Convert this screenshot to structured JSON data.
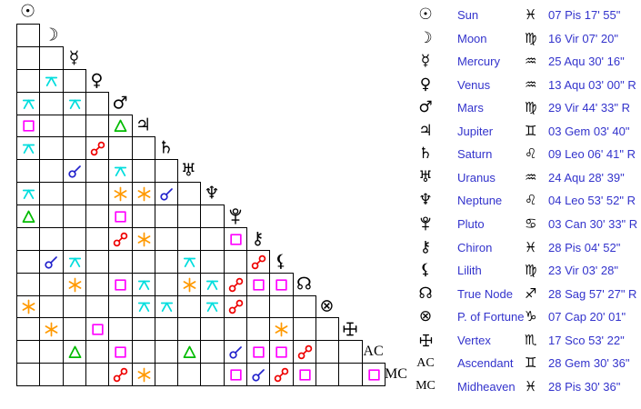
{
  "colors": {
    "background": "#ffffff",
    "grid_line": "#000000",
    "glyph": "#000000",
    "legend_text": "#3333cc"
  },
  "aspect_symbols": {
    "conjunction": {
      "label": "conjunction",
      "color": "#2222cc"
    },
    "opposition": {
      "label": "opposition",
      "color": "#ee0000"
    },
    "square": {
      "label": "square",
      "color": "#ff00ff"
    },
    "trine": {
      "label": "trine",
      "color": "#00bb00"
    },
    "sextile": {
      "label": "sextile",
      "color": "#ff9900"
    },
    "quincunx": {
      "label": "quincunx",
      "color": "#00dddd"
    }
  },
  "planets": [
    {
      "name": "Sun",
      "glyph": "☉",
      "glyph_type": "symbol",
      "sign": "♓",
      "position": "07 Pis 17' 55\""
    },
    {
      "name": "Moon",
      "glyph": "☽",
      "glyph_type": "symbol",
      "sign": "♍",
      "position": "16 Vir 07' 20\""
    },
    {
      "name": "Mercury",
      "glyph": "☿",
      "glyph_type": "symbol",
      "sign": "♒",
      "position": "25 Aqu 30' 16\""
    },
    {
      "name": "Venus",
      "glyph": "♀",
      "glyph_type": "symbol",
      "sign": "♒",
      "position": "13 Aqu 03' 00\" R"
    },
    {
      "name": "Mars",
      "glyph": "♂",
      "glyph_type": "symbol",
      "sign": "♍",
      "position": "29 Vir 44' 33\" R"
    },
    {
      "name": "Jupiter",
      "glyph": "♃",
      "glyph_type": "symbol",
      "sign": "♊",
      "position": "03 Gem 03' 40\""
    },
    {
      "name": "Saturn",
      "glyph": "♄",
      "glyph_type": "symbol",
      "sign": "♌",
      "position": "09 Leo 06' 41\" R"
    },
    {
      "name": "Uranus",
      "glyph": "♅",
      "glyph_type": "symbol",
      "sign": "♒",
      "position": "24 Aqu 28' 39\""
    },
    {
      "name": "Neptune",
      "glyph": "♆",
      "glyph_type": "symbol",
      "sign": "♌",
      "position": "04 Leo 53' 52\" R"
    },
    {
      "name": "Pluto",
      "glyph": "♇",
      "glyph_type": "svg-pluto",
      "sign": "♋",
      "position": "03 Can 30' 33\" R"
    },
    {
      "name": "Chiron",
      "glyph": "⚷",
      "glyph_type": "symbol",
      "sign": "♓",
      "position": "28 Pis 04' 52\""
    },
    {
      "name": "Lilith",
      "glyph": "⚸",
      "glyph_type": "symbol",
      "sign": "♍",
      "position": "23 Vir 03' 28\""
    },
    {
      "name": "True Node",
      "glyph": "☊",
      "glyph_type": "symbol",
      "sign": "♐",
      "position": "28 Sag 57' 27\" R"
    },
    {
      "name": "P. of Fortune",
      "glyph": "⊗",
      "glyph_type": "symbol",
      "sign": "♑",
      "position": "07 Cap 20' 01\""
    },
    {
      "name": "Vertex",
      "glyph": "✛",
      "glyph_type": "svg-vertex",
      "sign": "♏",
      "position": "17 Sco 53' 22\""
    },
    {
      "name": "Ascendant",
      "glyph": "AC",
      "glyph_type": "serif",
      "sign": "♊",
      "position": "28 Gem 30' 36\""
    },
    {
      "name": "Midheaven",
      "glyph": "MC",
      "glyph_type": "serif",
      "sign": "♓",
      "position": "28 Pis 30' 36\""
    }
  ],
  "aspect_rows": [
    [
      null
    ],
    [
      null,
      null
    ],
    [
      null,
      "quincunx",
      null
    ],
    [
      "quincunx",
      null,
      "quincunx",
      null
    ],
    [
      "square",
      null,
      null,
      null,
      "trine"
    ],
    [
      "quincunx",
      null,
      null,
      "opposition",
      null,
      null
    ],
    [
      null,
      null,
      "conjunction",
      null,
      "quincunx",
      null,
      null
    ],
    [
      "quincunx",
      null,
      null,
      null,
      "sextile",
      "sextile",
      "conjunction",
      null
    ],
    [
      "trine",
      null,
      null,
      null,
      "square",
      null,
      null,
      null,
      null
    ],
    [
      null,
      null,
      null,
      null,
      "opposition",
      "sextile",
      null,
      null,
      null,
      "square"
    ],
    [
      null,
      "conjunction",
      "quincunx",
      null,
      null,
      null,
      null,
      "quincunx",
      null,
      null,
      "opposition"
    ],
    [
      null,
      null,
      "sextile",
      null,
      "square",
      "quincunx",
      null,
      "sextile",
      "quincunx",
      "opposition",
      "square",
      "square"
    ],
    [
      "sextile",
      null,
      null,
      null,
      null,
      "quincunx",
      "quincunx",
      null,
      "quincunx",
      "opposition",
      null,
      null,
      null
    ],
    [
      null,
      "sextile",
      null,
      "square",
      null,
      null,
      null,
      null,
      null,
      null,
      null,
      "sextile",
      null,
      null
    ],
    [
      null,
      null,
      "trine",
      null,
      "square",
      null,
      null,
      "trine",
      null,
      "conjunction",
      "square",
      "square",
      "opposition",
      null,
      null
    ],
    [
      null,
      null,
      null,
      null,
      "opposition",
      "sextile",
      null,
      null,
      null,
      "square",
      "conjunction",
      "opposition",
      "square",
      null,
      null,
      "square"
    ]
  ]
}
